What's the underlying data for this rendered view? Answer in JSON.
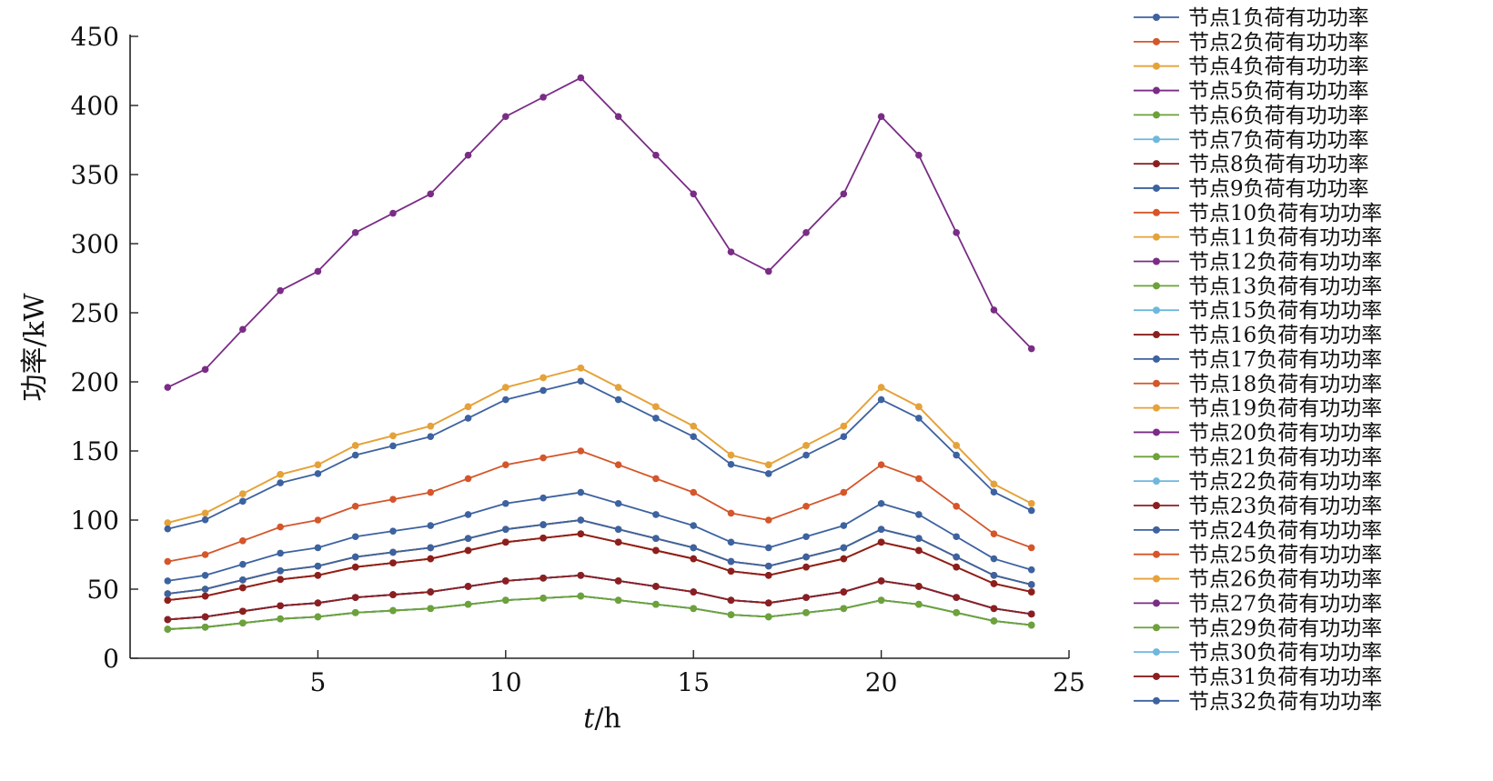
{
  "chart_data": {
    "type": "line",
    "title": "",
    "xlabel": {
      "italic": "t",
      "rest": "/h"
    },
    "ylabel": "功率/kW",
    "xlim": [
      0,
      25
    ],
    "ylim": [
      0,
      450
    ],
    "xticks": [
      5,
      10,
      15,
      20,
      25
    ],
    "yticks": [
      0,
      50,
      100,
      150,
      200,
      250,
      300,
      350,
      400,
      450
    ],
    "grid": false,
    "legend_position": "right",
    "x": [
      1,
      2,
      3,
      4,
      5,
      6,
      7,
      8,
      9,
      10,
      11,
      12,
      13,
      14,
      15,
      16,
      17,
      18,
      19,
      20,
      21,
      22,
      23,
      24
    ],
    "colors": {
      "blue": "#3d62a0",
      "orange": "#d4562a",
      "gold": "#e5a23a",
      "purple": "#7a2c86",
      "green": "#6ea13a",
      "cyan": "#6fb7de",
      "darkred": "#8b1f1f"
    },
    "profiles": {
      "p5": [
        196,
        209,
        238,
        266,
        280,
        308,
        322,
        336,
        364,
        392,
        406,
        420,
        392,
        364,
        336,
        294,
        280,
        308,
        336,
        392,
        364,
        308,
        252,
        224
      ],
      "p19": [
        98,
        105,
        119,
        133,
        140,
        154,
        161,
        168,
        182,
        196,
        203,
        210,
        196,
        182,
        168,
        147,
        140,
        154,
        168,
        196,
        182,
        154,
        126,
        112
      ],
      "p24": [
        93.6,
        100.2,
        113.6,
        126.9,
        133.6,
        147.0,
        153.7,
        160.4,
        173.7,
        187.1,
        193.8,
        200.5,
        187.1,
        173.7,
        160.4,
        140.3,
        133.6,
        147.0,
        160.4,
        187.1,
        173.7,
        147.0,
        120.3,
        106.9
      ],
      "p25": [
        70,
        75,
        85,
        95,
        100,
        110,
        115,
        120,
        130,
        140,
        145,
        150,
        140,
        130,
        120,
        105,
        100,
        110,
        120,
        140,
        130,
        110,
        90,
        80
      ],
      "p17": [
        56,
        60,
        68,
        76,
        80,
        88,
        92,
        96,
        104,
        112,
        116,
        120,
        112,
        104,
        96,
        84,
        80,
        88,
        96,
        112,
        104,
        88,
        72,
        64
      ],
      "p32": [
        46.7,
        50,
        56.7,
        63.3,
        66.7,
        73.3,
        76.7,
        80,
        86.7,
        93.3,
        96.7,
        100,
        93.3,
        86.7,
        80,
        70,
        66.7,
        73.3,
        80,
        93.3,
        86.7,
        73.3,
        60,
        53.3
      ],
      "p18": [
        42,
        45,
        51,
        57,
        60,
        66,
        69,
        72,
        78,
        84,
        87,
        90,
        84,
        78,
        72,
        63,
        60,
        66,
        72,
        84,
        78,
        66,
        54,
        48
      ],
      "p27": [
        28,
        30,
        34,
        38,
        40,
        44,
        46,
        48,
        52,
        56,
        58,
        60,
        56,
        52,
        48,
        42,
        40,
        44,
        48,
        56,
        52,
        44,
        36,
        32
      ],
      "p29": [
        21,
        22.5,
        25.5,
        28.5,
        30,
        33,
        34.5,
        36,
        39,
        42,
        43.5,
        45,
        42,
        39,
        36,
        31.5,
        30,
        33,
        36,
        42,
        39,
        33,
        27,
        24
      ]
    },
    "series": [
      {
        "name": "节点1负荷有功功率",
        "color": "blue",
        "profile": "p32"
      },
      {
        "name": "节点2负荷有功功率",
        "color": "orange",
        "profile": "p18"
      },
      {
        "name": "节点4负荷有功功率",
        "color": "gold",
        "profile": "p19"
      },
      {
        "name": "节点5负荷有功功率",
        "color": "purple",
        "profile": "p5"
      },
      {
        "name": "节点6负荷有功功率",
        "color": "green",
        "profile": "p29"
      },
      {
        "name": "节点7负荷有功功率",
        "color": "cyan",
        "profile": "p29"
      },
      {
        "name": "节点8负荷有功功率",
        "color": "darkred",
        "profile": "p27"
      },
      {
        "name": "节点9负荷有功功率",
        "color": "blue",
        "profile": "p32"
      },
      {
        "name": "节点10负荷有功功率",
        "color": "orange",
        "profile": "p18"
      },
      {
        "name": "节点11负荷有功功率",
        "color": "gold",
        "profile": "p18"
      },
      {
        "name": "节点12负荷有功功率",
        "color": "purple",
        "profile": "p27"
      },
      {
        "name": "节点13负荷有功功率",
        "color": "green",
        "profile": "p29"
      },
      {
        "name": "节点15负荷有功功率",
        "color": "cyan",
        "profile": "p27"
      },
      {
        "name": "节点16负荷有功功率",
        "color": "darkred",
        "profile": "p27"
      },
      {
        "name": "节点17负荷有功功率",
        "color": "blue",
        "profile": "p17"
      },
      {
        "name": "节点18负荷有功功率",
        "color": "orange",
        "profile": "p18"
      },
      {
        "name": "节点19负荷有功功率",
        "color": "gold",
        "profile": "p19"
      },
      {
        "name": "节点20负荷有功功率",
        "color": "purple",
        "profile": "p27"
      },
      {
        "name": "节点21负荷有功功率",
        "color": "green",
        "profile": "p29"
      },
      {
        "name": "节点22负荷有功功率",
        "color": "cyan",
        "profile": "p29"
      },
      {
        "name": "节点23负荷有功功率",
        "color": "darkred",
        "profile": "p18"
      },
      {
        "name": "节点24负荷有功功率",
        "color": "blue",
        "profile": "p24"
      },
      {
        "name": "节点25负荷有功功率",
        "color": "orange",
        "profile": "p25"
      },
      {
        "name": "节点26负荷有功功率",
        "color": "gold",
        "profile": "p32"
      },
      {
        "name": "节点27负荷有功功率",
        "color": "purple",
        "profile": "p27"
      },
      {
        "name": "节点29负荷有功功率",
        "color": "green",
        "profile": "p29"
      },
      {
        "name": "节点30负荷有功功率",
        "color": "cyan",
        "profile": "p27"
      },
      {
        "name": "节点31负荷有功功率",
        "color": "darkred",
        "profile": "p27"
      },
      {
        "name": "节点32负荷有功功率",
        "color": "blue",
        "profile": "p32"
      }
    ]
  }
}
